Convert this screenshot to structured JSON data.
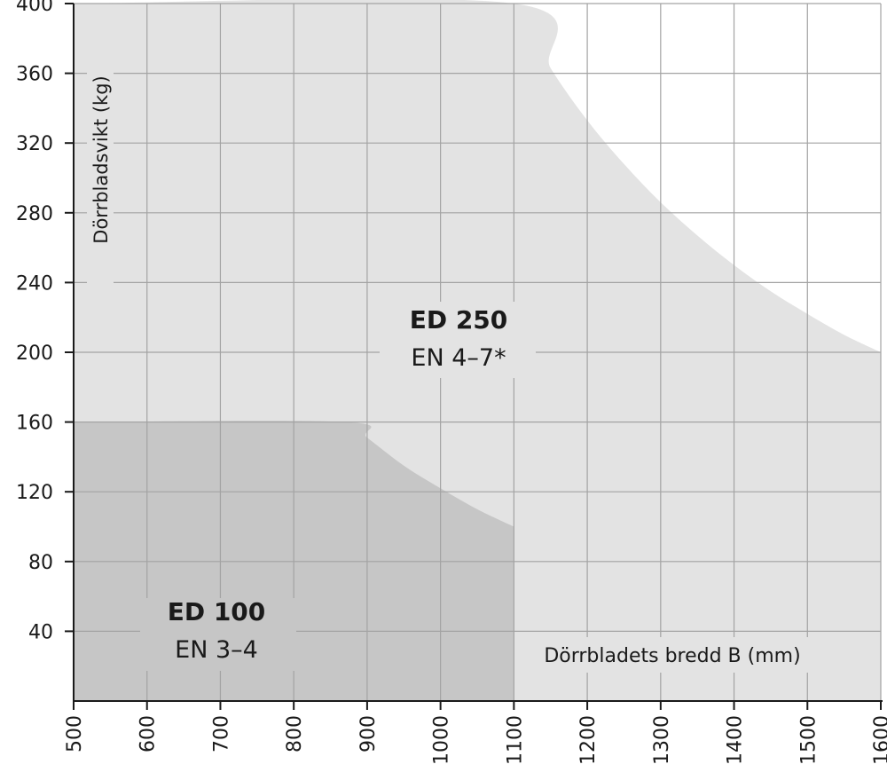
{
  "chart_data": {
    "type": "area",
    "xlabel": "Dörrbladets bredd B (mm)",
    "ylabel": "Dörrbladsvikt (kg)",
    "xlim": [
      500,
      1600
    ],
    "ylim": [
      0,
      400
    ],
    "xticks": [
      500,
      600,
      700,
      800,
      900,
      1000,
      1100,
      1200,
      1300,
      1400,
      1500,
      1600
    ],
    "yticks": [
      40,
      80,
      120,
      160,
      200,
      240,
      280,
      320,
      360,
      400
    ],
    "grid": true,
    "series": [
      {
        "name": "ED 250",
        "subtitle": "EN 4–7*",
        "color": "#e3e3e3",
        "x": [
          500,
          1100,
          1150,
          1200,
          1250,
          1300,
          1350,
          1400,
          1450,
          1500,
          1550,
          1600
        ],
        "y": [
          400,
          400,
          363,
          333,
          308,
          286,
          267,
          250,
          235,
          222,
          210,
          200
        ]
      },
      {
        "name": "ED 100",
        "subtitle": "EN 3–4",
        "color": "#c6c6c6",
        "x": [
          500,
          870,
          900,
          950,
          1000,
          1050,
          1100
        ],
        "y": [
          160,
          160,
          151,
          135,
          122,
          110,
          100
        ],
        "x_max": 1100
      }
    ]
  }
}
